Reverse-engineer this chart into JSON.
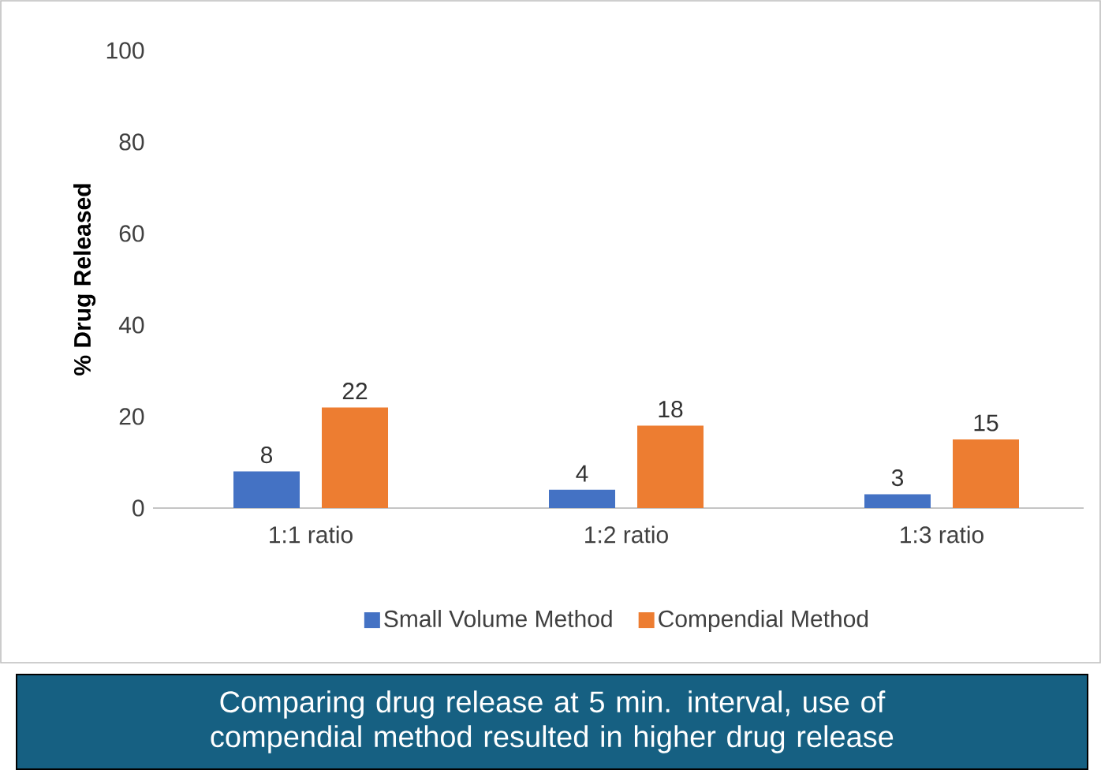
{
  "chart_data": {
    "type": "bar",
    "ylabel": "% Drug Released",
    "categories": [
      "1:1 ratio",
      "1:2 ratio",
      "1:3 ratio"
    ],
    "series": [
      {
        "name": "Small Volume Method",
        "color": "#4472c4",
        "values": [
          8,
          4,
          3
        ]
      },
      {
        "name": "Compendial Method",
        "color": "#ed7d31",
        "values": [
          22,
          18,
          15
        ]
      }
    ],
    "ylim": [
      0,
      100
    ],
    "yticks": [
      0,
      20,
      40,
      60,
      80,
      100
    ],
    "data_labels": true,
    "legend": "bottom",
    "annotations": [
      "Comparing drug release at 5 min. interval, use of compendial method resulted in higher drug release"
    ]
  }
}
